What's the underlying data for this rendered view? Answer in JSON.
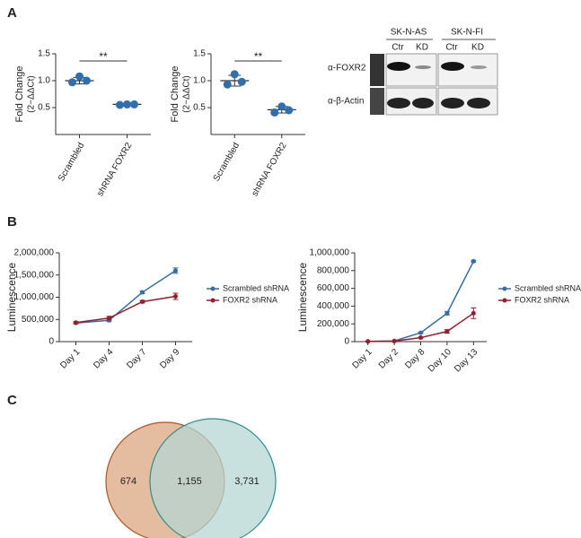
{
  "panels": [
    "A",
    "B",
    "C"
  ],
  "blot": {
    "cell_lines": [
      "SK-N-AS",
      "SK-N-FI"
    ],
    "lanes": [
      "Ctr",
      "KD",
      "Ctr",
      "KD"
    ],
    "antibodies": [
      "α-FOXR2",
      "α-β-Actin"
    ]
  },
  "chart_data": [
    {
      "type": "dot",
      "ylabel": "Fold Change",
      "ylabel_unit": "(2−ΔΔCt)",
      "significance": "**",
      "categories": [
        "Scrambled",
        "shRNA FOXR2"
      ],
      "color": "#2f6fad",
      "points": [
        [
          1.08,
          0.97,
          1.0
        ],
        [
          0.56,
          0.55,
          0.56
        ]
      ],
      "means": [
        1.0,
        0.56
      ],
      "errors": [
        0.06,
        0.01
      ],
      "ylim": [
        0,
        1.5
      ],
      "yticks": [
        0.5,
        {
          "value": 1,
          "label": "1.0"
        },
        1.5
      ]
    },
    {
      "type": "dot",
      "ylabel": "Fold Change",
      "ylabel_unit": "(2−ΔΔCt)",
      "significance": "**",
      "categories": [
        "Scrambled",
        "shRNA FOXR2"
      ],
      "color": "#2f6fad",
      "points": [
        [
          1.12,
          0.93,
          0.98
        ],
        [
          0.52,
          0.41,
          0.45
        ]
      ],
      "means": [
        1.0,
        0.46
      ],
      "errors": [
        0.1,
        0.06
      ],
      "ylim": [
        0,
        1.5
      ],
      "yticks": [
        0.5,
        {
          "value": 1,
          "label": "1.0"
        },
        1.5
      ]
    },
    {
      "type": "line",
      "ylabel": "Luminescence",
      "categories": [
        "Day 1",
        "Day 4",
        "Day 7",
        "Day 9"
      ],
      "series": [
        {
          "name": "Scrambled shRNA",
          "color": "#2f6fad",
          "values": [
            420000,
            480000,
            1110000,
            1600000
          ],
          "errors": [
            20000,
            30000,
            30000,
            60000
          ]
        },
        {
          "name": "FOXR2 shRNA",
          "color": "#9b1b2a",
          "values": [
            430000,
            530000,
            900000,
            1020000
          ],
          "errors": [
            20000,
            40000,
            30000,
            70000
          ]
        }
      ],
      "ylim": [
        0,
        2000000
      ],
      "yticks": [
        0,
        {
          "value": 500000,
          "label": "500,000"
        },
        {
          "value": 1000000,
          "label": "1,000,000"
        },
        {
          "value": 1500000,
          "label": "1,500,000"
        },
        {
          "value": 2000000,
          "label": "2,000,000"
        }
      ]
    },
    {
      "type": "line",
      "ylabel": "Luminescence",
      "categories": [
        "Day 1",
        "Day 2",
        "Day 8",
        "Day 10",
        "Day 13"
      ],
      "series": [
        {
          "name": "Scrambled shRNA",
          "color": "#2f6fad",
          "values": [
            3000,
            8000,
            100000,
            320000,
            905000
          ],
          "errors": [
            1000,
            2000,
            8000,
            20000,
            10000
          ]
        },
        {
          "name": "FOXR2 shRNA",
          "color": "#9b1b2a",
          "values": [
            2000,
            5000,
            45000,
            115000,
            320000
          ],
          "errors": [
            1000,
            2000,
            6000,
            20000,
            60000
          ]
        }
      ],
      "ylim": [
        0,
        1000000
      ],
      "yticks": [
        0,
        {
          "value": 200000,
          "label": "200,000"
        },
        {
          "value": 400000,
          "label": "400,000"
        },
        {
          "value": 600000,
          "label": "600,000"
        },
        {
          "value": 800000,
          "label": "800,000"
        },
        {
          "value": 1000000,
          "label": "1,000,000"
        }
      ]
    },
    {
      "type": "venn",
      "values": [
        674,
        1155,
        3731
      ],
      "value_labels": [
        "674",
        "1,155",
        "3,731"
      ],
      "colors": [
        "#e3b99b",
        "#b5d6d3"
      ]
    }
  ]
}
